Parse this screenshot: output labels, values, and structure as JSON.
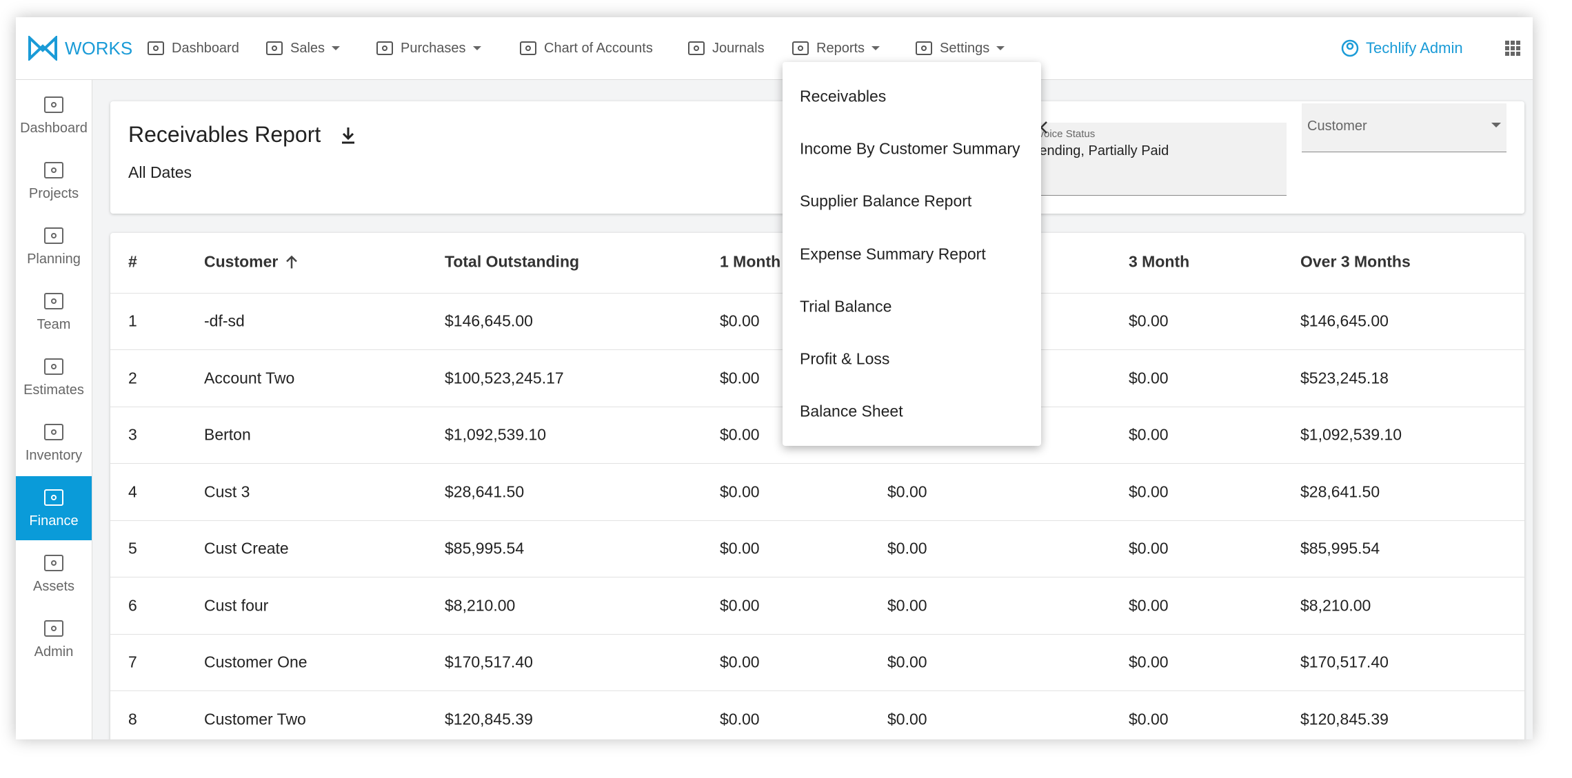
{
  "nav": {
    "brand": "WORKS",
    "items": [
      "Dashboard",
      "Sales",
      "Purchases",
      "Chart of Accounts",
      "Journals",
      "Reports",
      "Settings"
    ],
    "user": "Techlify Admin"
  },
  "sidebar": {
    "items": [
      "Dashboard",
      "Projects",
      "Planning",
      "Team",
      "Estimates",
      "Inventory",
      "Finance",
      "Assets",
      "Admin"
    ]
  },
  "report": {
    "title": "Receivables Report",
    "subtitle": "All Dates",
    "filters": {
      "status_label": "Invoice Status",
      "status_value": "Pending, Partially Paid",
      "customer": "Customer"
    }
  },
  "table": {
    "columns": [
      "#",
      "Customer",
      "Total Outstanding",
      "1 Month",
      null,
      "3 Month",
      "Over 3 Months"
    ],
    "rows": [
      [
        "1",
        "-df-sd",
        "$146,645.00",
        "$0.00",
        null,
        "$0.00",
        "$146,645.00"
      ],
      [
        "2",
        "Account Two",
        "$100,523,245.17",
        "$0.00",
        null,
        "$0.00",
        "$523,245.18"
      ],
      [
        "3",
        "Berton",
        "$1,092,539.10",
        "$0.00",
        null,
        "$0.00",
        "$1,092,539.10"
      ],
      [
        "4",
        "Cust 3",
        "$28,641.50",
        "$0.00",
        "$0.00",
        "$0.00",
        "$28,641.50"
      ],
      [
        "5",
        "Cust Create",
        "$85,995.54",
        "$0.00",
        "$0.00",
        "$0.00",
        "$85,995.54"
      ],
      [
        "6",
        "Cust four",
        "$8,210.00",
        "$0.00",
        "$0.00",
        "$0.00",
        "$8,210.00"
      ],
      [
        "7",
        "Customer One",
        "$170,517.40",
        "$0.00",
        "$0.00",
        "$0.00",
        "$170,517.40"
      ],
      [
        "8",
        "Customer Two",
        "$120,845.39",
        "$0.00",
        "$0.00",
        "$0.00",
        "$120,845.39"
      ]
    ]
  },
  "menu": {
    "items": [
      "Receivables",
      "Income By Customer Summary",
      "Supplier Balance Report",
      "Expense Summary Report",
      "Trial Balance",
      "Profit & Loss",
      "Balance Sheet"
    ]
  }
}
